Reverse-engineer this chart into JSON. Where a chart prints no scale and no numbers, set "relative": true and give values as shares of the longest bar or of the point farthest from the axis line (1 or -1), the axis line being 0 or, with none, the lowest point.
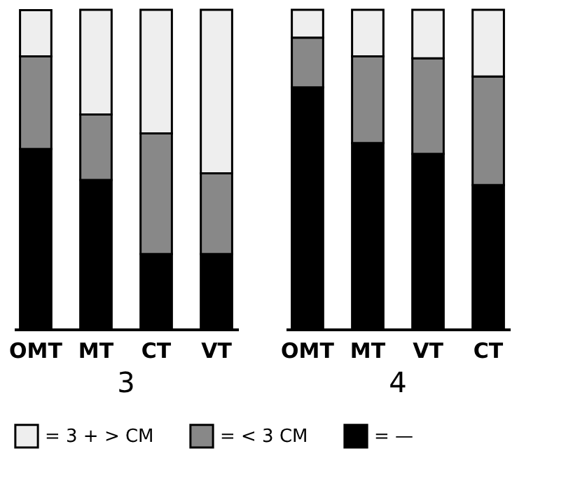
{
  "chart_data": [
    {
      "type": "bar",
      "title": "3",
      "categories": [
        "OMT",
        "MT",
        "CT",
        "VT"
      ],
      "relative": true,
      "stacked": true,
      "legend": "bottom",
      "series": [
        {
          "name": "= —",
          "color": "#000000",
          "values": [
            0.564,
            0.467,
            0.235,
            0.235
          ]
        },
        {
          "name": "= < 3 CM",
          "color": "#888888",
          "values": [
            0.29,
            0.205,
            0.378,
            0.253
          ]
        },
        {
          "name": "= 3 + > CM",
          "color": "#eeeeee",
          "values": [
            0.145,
            0.328,
            0.387,
            0.512
          ]
        }
      ]
    },
    {
      "type": "bar",
      "title": "4",
      "categories": [
        "OMT",
        "MT",
        "VT",
        "CT"
      ],
      "relative": true,
      "stacked": true,
      "legend": "bottom",
      "series": [
        {
          "name": "= —",
          "color": "#000000",
          "values": [
            0.757,
            0.583,
            0.549,
            0.451
          ]
        },
        {
          "name": "= < 3 CM",
          "color": "#888888",
          "values": [
            0.156,
            0.271,
            0.299,
            0.34
          ]
        },
        {
          "name": "= 3 + > CM",
          "color": "#eeeeee",
          "values": [
            0.087,
            0.146,
            0.152,
            0.209
          ]
        }
      ]
    }
  ]
}
